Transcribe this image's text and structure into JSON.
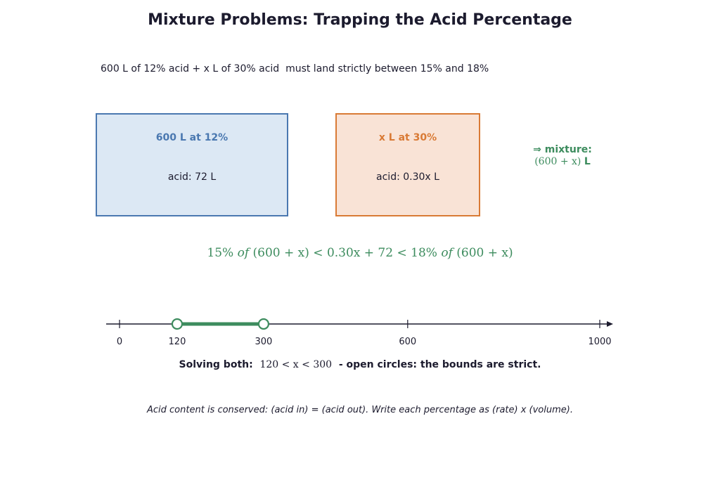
{
  "title": "Mixture Problems: Trapping the Acid Percentage",
  "problem_statement": "600 L of 12% acid + x L of 30% acid  must land strictly between 15% and 18%",
  "solution_a": {
    "title": "600 L at 12%",
    "acid": "acid: 72 L",
    "color": "#4a78b0",
    "fill": "#dce8f4"
  },
  "solution_b": {
    "title": "x L at 30%",
    "acid": "acid: 0.30x L",
    "color": "#d97a35",
    "fill": "#f9e3d6"
  },
  "mixture": {
    "line1": "⇒ mixture:",
    "volume": "(600 + x)",
    "unit": "L",
    "color": "#3d8c5e"
  },
  "inequality": {
    "left_pct": "15%",
    "of": "of",
    "expr": "(600 + x)",
    "lt": "<",
    "middle": "0.30x + 72",
    "right_pct": "18%"
  },
  "number_line": {
    "ticks": [
      "0",
      "120",
      "300",
      "600",
      "1000"
    ],
    "tick_values": [
      0,
      120,
      300,
      600,
      1000
    ],
    "range": [
      0,
      1000
    ],
    "interval": [
      120,
      300
    ],
    "open_endpoints": true,
    "accent": "#3d8c5e"
  },
  "solution": {
    "prefix": "Solving both:",
    "math": "120 < x < 300",
    "suffix": "- open circles: the bounds are strict."
  },
  "footnote": "Acid content is conserved: (acid in) = (acid out). Write each percentage as (rate) x (volume)."
}
